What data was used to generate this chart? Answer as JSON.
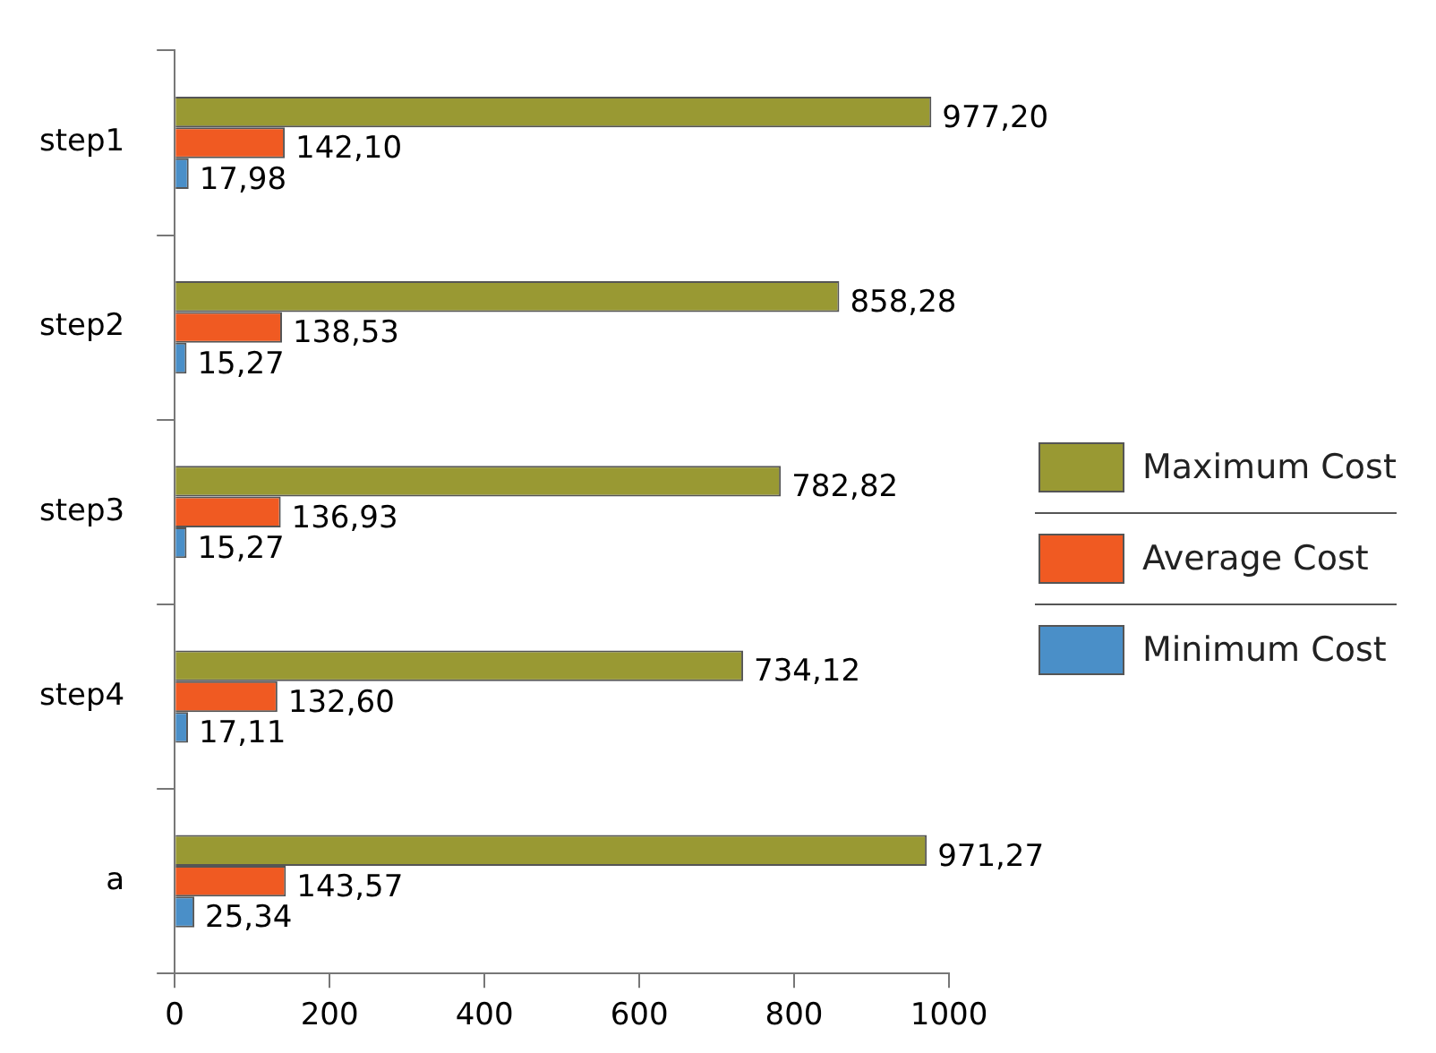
{
  "chart_data": {
    "type": "bar",
    "orientation": "horizontal",
    "categories": [
      "step1",
      "step2",
      "step3",
      "step4",
      "a"
    ],
    "series": [
      {
        "name": "Maximum Cost",
        "color": "#999933",
        "values": [
          977.2,
          858.28,
          782.82,
          734.12,
          971.27
        ],
        "value_labels": [
          "977,20",
          "858,28",
          "782,82",
          "734,12",
          "971,27"
        ]
      },
      {
        "name": "Average Cost",
        "color": "#f05a22",
        "values": [
          142.1,
          138.53,
          136.93,
          132.6,
          143.57
        ],
        "value_labels": [
          "142,10",
          "138,53",
          "136,93",
          "132,60",
          "143,57"
        ]
      },
      {
        "name": "Minimum Cost",
        "color": "#4a8fc8",
        "values": [
          17.98,
          15.27,
          15.27,
          17.11,
          25.34
        ],
        "value_labels": [
          "17,98",
          "15,27",
          "15,27",
          "17,11",
          "25,34"
        ]
      }
    ],
    "xlim": [
      0,
      1000
    ],
    "xticks": [
      0,
      200,
      400,
      600,
      800,
      1000
    ],
    "grid": false,
    "legend": "right"
  }
}
